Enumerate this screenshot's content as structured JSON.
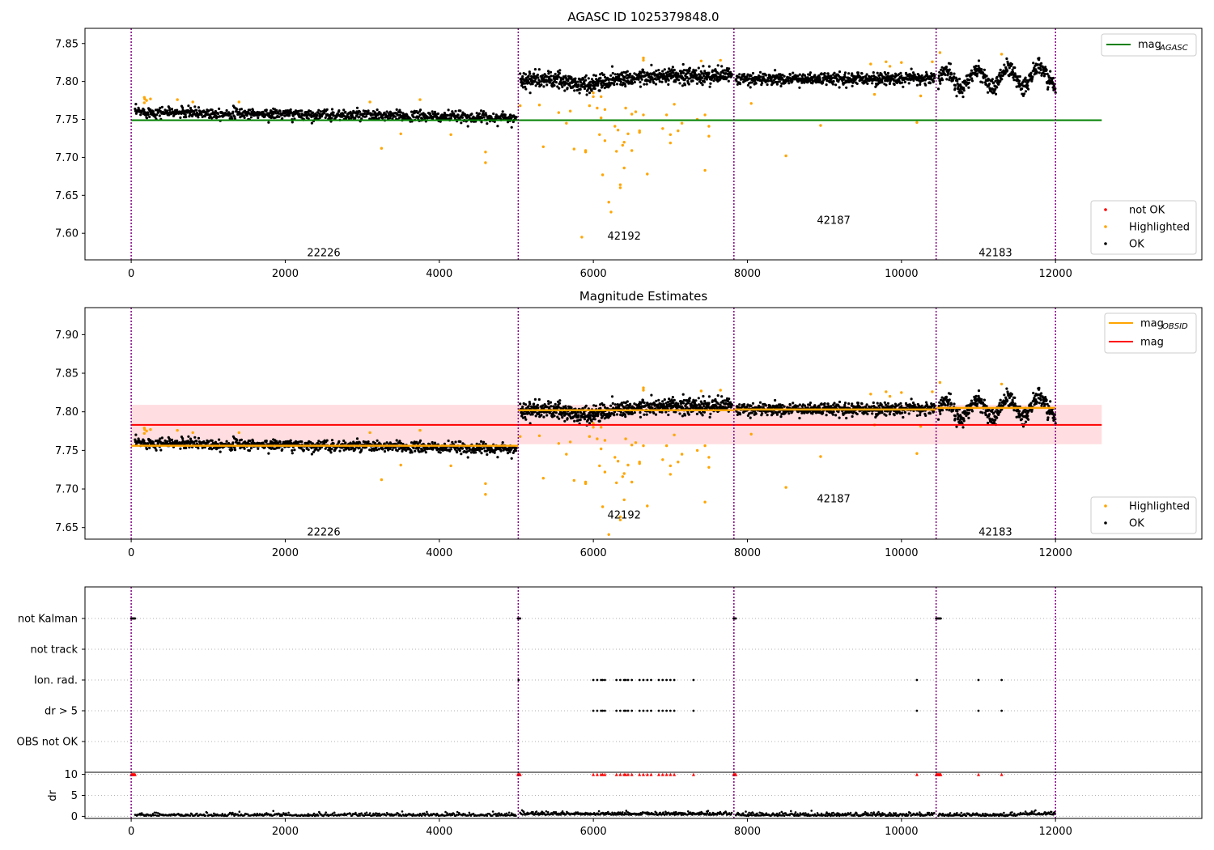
{
  "figure_title": "AGASC ID 1025379848.0",
  "colors": {
    "ok": "#000000",
    "highlighted": "#ffa500",
    "not_ok": "#ff0000",
    "agasc_line": "#008000",
    "obsid_line": "#ffa500",
    "mag_line": "#ff0000",
    "mag_band": "#ffdde0",
    "boundary": "#800080",
    "grid": "#b0b0b0"
  },
  "chart_data": [
    {
      "type": "scatter",
      "title": "AGASC ID 1025379848.0",
      "xlim": [
        -600,
        13900
      ],
      "ylim": [
        7.565,
        7.87
      ],
      "xticks": [
        0,
        2000,
        4000,
        6000,
        8000,
        10000,
        12000
      ],
      "yticks": [
        7.6,
        7.65,
        7.7,
        7.75,
        7.8,
        7.85
      ],
      "ytick_labels": [
        "7.60",
        "7.65",
        "7.70",
        "7.75",
        "7.80",
        "7.85"
      ],
      "obsid_boundaries": [
        0,
        5025,
        7825,
        10450,
        12000
      ],
      "obsid_labels": [
        {
          "text": "22226",
          "x": 2500,
          "y": 7.575
        },
        {
          "text": "42192",
          "x": 6400,
          "y": 7.597
        },
        {
          "text": "42187",
          "x": 9120,
          "y": 7.618
        },
        {
          "text": "42183",
          "x": 11220,
          "y": 7.575
        }
      ],
      "segments": [
        {
          "x0": 50,
          "x1": 5000,
          "m0": 7.76,
          "m1": 7.752,
          "noise": 0.008,
          "n": 900
        },
        {
          "x0": 5050,
          "x1": 7800,
          "m0": 7.802,
          "m1": 7.808,
          "noise": 0.012,
          "n": 700,
          "dip": {
            "x": 5900,
            "w": 300,
            "d": 0.008
          }
        },
        {
          "x0": 7850,
          "x1": 10430,
          "m0": 7.803,
          "m1": 7.804,
          "noise": 0.009,
          "n": 600
        },
        {
          "x0": 10480,
          "x1": 12000,
          "m0": 7.802,
          "m1": 7.808,
          "noise": 0.012,
          "n": 380,
          "wave": {
            "amp": 0.012,
            "period": 400
          }
        }
      ],
      "highlighted": [
        [
          170,
          7.779
        ],
        [
          170,
          7.772
        ],
        [
          175,
          7.777
        ],
        [
          200,
          7.775
        ],
        [
          250,
          7.777
        ],
        [
          600,
          7.776
        ],
        [
          800,
          7.773
        ],
        [
          1400,
          7.773
        ],
        [
          3100,
          7.773
        ],
        [
          3250,
          7.712
        ],
        [
          3500,
          7.731
        ],
        [
          3750,
          7.776
        ],
        [
          4150,
          7.73
        ],
        [
          4600,
          7.707
        ],
        [
          4600,
          7.693
        ],
        [
          5050,
          7.768
        ],
        [
          5300,
          7.769
        ],
        [
          5350,
          7.714
        ],
        [
          5550,
          7.759
        ],
        [
          5650,
          7.745
        ],
        [
          5700,
          7.761
        ],
        [
          5750,
          7.711
        ],
        [
          5850,
          7.595
        ],
        [
          5900,
          7.707
        ],
        [
          5900,
          7.709
        ],
        [
          5950,
          7.768
        ],
        [
          6000,
          7.78
        ],
        [
          6000,
          7.785
        ],
        [
          6050,
          7.765
        ],
        [
          6080,
          7.73
        ],
        [
          6100,
          7.752
        ],
        [
          6100,
          7.78
        ],
        [
          6120,
          7.677
        ],
        [
          6150,
          7.722
        ],
        [
          6150,
          7.763
        ],
        [
          6200,
          7.641
        ],
        [
          6230,
          7.628
        ],
        [
          6280,
          7.741
        ],
        [
          6300,
          7.708
        ],
        [
          6320,
          7.736
        ],
        [
          6350,
          7.66
        ],
        [
          6350,
          7.664
        ],
        [
          6380,
          7.716
        ],
        [
          6400,
          7.686
        ],
        [
          6400,
          7.72
        ],
        [
          6420,
          7.765
        ],
        [
          6450,
          7.731
        ],
        [
          6500,
          7.709
        ],
        [
          6500,
          7.757
        ],
        [
          6550,
          7.76
        ],
        [
          6600,
          7.735
        ],
        [
          6600,
          7.733
        ],
        [
          6650,
          7.756
        ],
        [
          6650,
          7.831
        ],
        [
          6650,
          7.828
        ],
        [
          6700,
          7.678
        ],
        [
          6900,
          7.738
        ],
        [
          6950,
          7.756
        ],
        [
          7000,
          7.73
        ],
        [
          7000,
          7.719
        ],
        [
          7050,
          7.77
        ],
        [
          7100,
          7.735
        ],
        [
          7150,
          7.745
        ],
        [
          7350,
          7.75
        ],
        [
          7400,
          7.827
        ],
        [
          7450,
          7.683
        ],
        [
          7450,
          7.756
        ],
        [
          7500,
          7.741
        ],
        [
          7500,
          7.728
        ],
        [
          7650,
          7.828
        ],
        [
          8050,
          7.771
        ],
        [
          8500,
          7.702
        ],
        [
          8950,
          7.742
        ],
        [
          9600,
          7.823
        ],
        [
          9650,
          7.783
        ],
        [
          9800,
          7.826
        ],
        [
          9850,
          7.82
        ],
        [
          10000,
          7.825
        ],
        [
          10200,
          7.746
        ],
        [
          10250,
          7.781
        ],
        [
          10400,
          7.826
        ],
        [
          10500,
          7.838
        ],
        [
          11300,
          7.836
        ]
      ],
      "legend": [
        {
          "label": "mag",
          "sub": "AGASC",
          "marker": "line",
          "color": "#008000"
        }
      ],
      "legend2": [
        {
          "label": "not OK",
          "marker": "dot",
          "color": "#ff0000"
        },
        {
          "label": "Highlighted",
          "marker": "dot",
          "color": "#ffa500"
        },
        {
          "label": "OK",
          "marker": "dot",
          "color": "#000000"
        }
      ],
      "agasc_mag": 7.749
    },
    {
      "type": "scatter",
      "title": "Magnitude Estimates",
      "xlim": [
        -600,
        13900
      ],
      "ylim": [
        7.635,
        7.935
      ],
      "xticks": [
        0,
        2000,
        4000,
        6000,
        8000,
        10000,
        12000
      ],
      "yticks": [
        7.65,
        7.7,
        7.75,
        7.8,
        7.85,
        7.9
      ],
      "ytick_labels": [
        "7.65",
        "7.70",
        "7.75",
        "7.80",
        "7.85",
        "7.90"
      ],
      "obsid_labels": [
        {
          "text": "22226",
          "x": 2500,
          "y": 7.645
        },
        {
          "text": "42192",
          "x": 6400,
          "y": 7.667
        },
        {
          "text": "42187",
          "x": 9120,
          "y": 7.688
        },
        {
          "text": "42183",
          "x": 11220,
          "y": 7.645
        }
      ],
      "mag": 7.783,
      "mag_band": [
        7.758,
        7.809
      ],
      "obsid_mags": [
        {
          "x0": 0,
          "x1": 5025,
          "mag": 7.756
        },
        {
          "x0": 5025,
          "x1": 7825,
          "mag": 7.802
        },
        {
          "x0": 7825,
          "x1": 10450,
          "mag": 7.803
        },
        {
          "x0": 10450,
          "x1": 12000,
          "mag": 7.805
        }
      ],
      "legend": [
        {
          "label": "mag",
          "sub": "OBSID",
          "marker": "line",
          "color": "#ffa500"
        },
        {
          "label": "mag",
          "sub": "",
          "marker": "line",
          "color": "#ff0000"
        }
      ],
      "legend2": [
        {
          "label": "Highlighted",
          "marker": "dot",
          "color": "#ffa500"
        },
        {
          "label": "OK",
          "marker": "dot",
          "color": "#000000"
        }
      ]
    },
    {
      "type": "scatter",
      "title": "",
      "xlim": [
        -600,
        13900
      ],
      "xticks": [
        0,
        2000,
        4000,
        6000,
        8000,
        10000,
        12000
      ],
      "flag_rows": [
        "not Kalman",
        "not track",
        "Ion. rad.",
        "dr > 5",
        "OBS not OK"
      ],
      "flag_points": {
        "not Kalman": [
          0,
          10,
          20,
          30,
          40,
          50,
          5020,
          5030,
          5040,
          5050,
          7820,
          7830,
          7840,
          7850,
          10450,
          10460,
          10470,
          10480,
          10490,
          10500,
          10510
        ],
        "Ion. rad.": [
          5030,
          6000,
          6050,
          6100,
          6120,
          6150,
          6300,
          6350,
          6400,
          6420,
          6450,
          6500,
          6600,
          6650,
          6700,
          6750,
          6850,
          6900,
          6950,
          7000,
          7050,
          7300,
          10200,
          11000,
          11300
        ],
        "dr > 5": [
          6000,
          6050,
          6100,
          6120,
          6150,
          6300,
          6350,
          6400,
          6420,
          6450,
          6500,
          6600,
          6650,
          6700,
          6750,
          6850,
          6900,
          6950,
          7000,
          7050,
          7300,
          10200,
          11000,
          11300
        ]
      },
      "dr_ylim": [
        -0.5,
        10.5
      ],
      "dr_yticks": [
        0,
        5,
        10
      ],
      "dr_ytick_labels": [
        "0",
        "5",
        "10"
      ],
      "dr_ylabel": "dr",
      "dr_high": [
        0,
        10,
        20,
        30,
        40,
        50,
        5020,
        5030,
        5040,
        5050,
        6000,
        6050,
        6100,
        6120,
        6150,
        6300,
        6350,
        6400,
        6420,
        6450,
        6500,
        6600,
        6650,
        6700,
        6750,
        6850,
        6900,
        6950,
        7000,
        7050,
        7300,
        7820,
        7830,
        7840,
        7850,
        10200,
        10450,
        10460,
        10470,
        10480,
        10490,
        10500,
        10510,
        11000,
        11300
      ]
    }
  ]
}
